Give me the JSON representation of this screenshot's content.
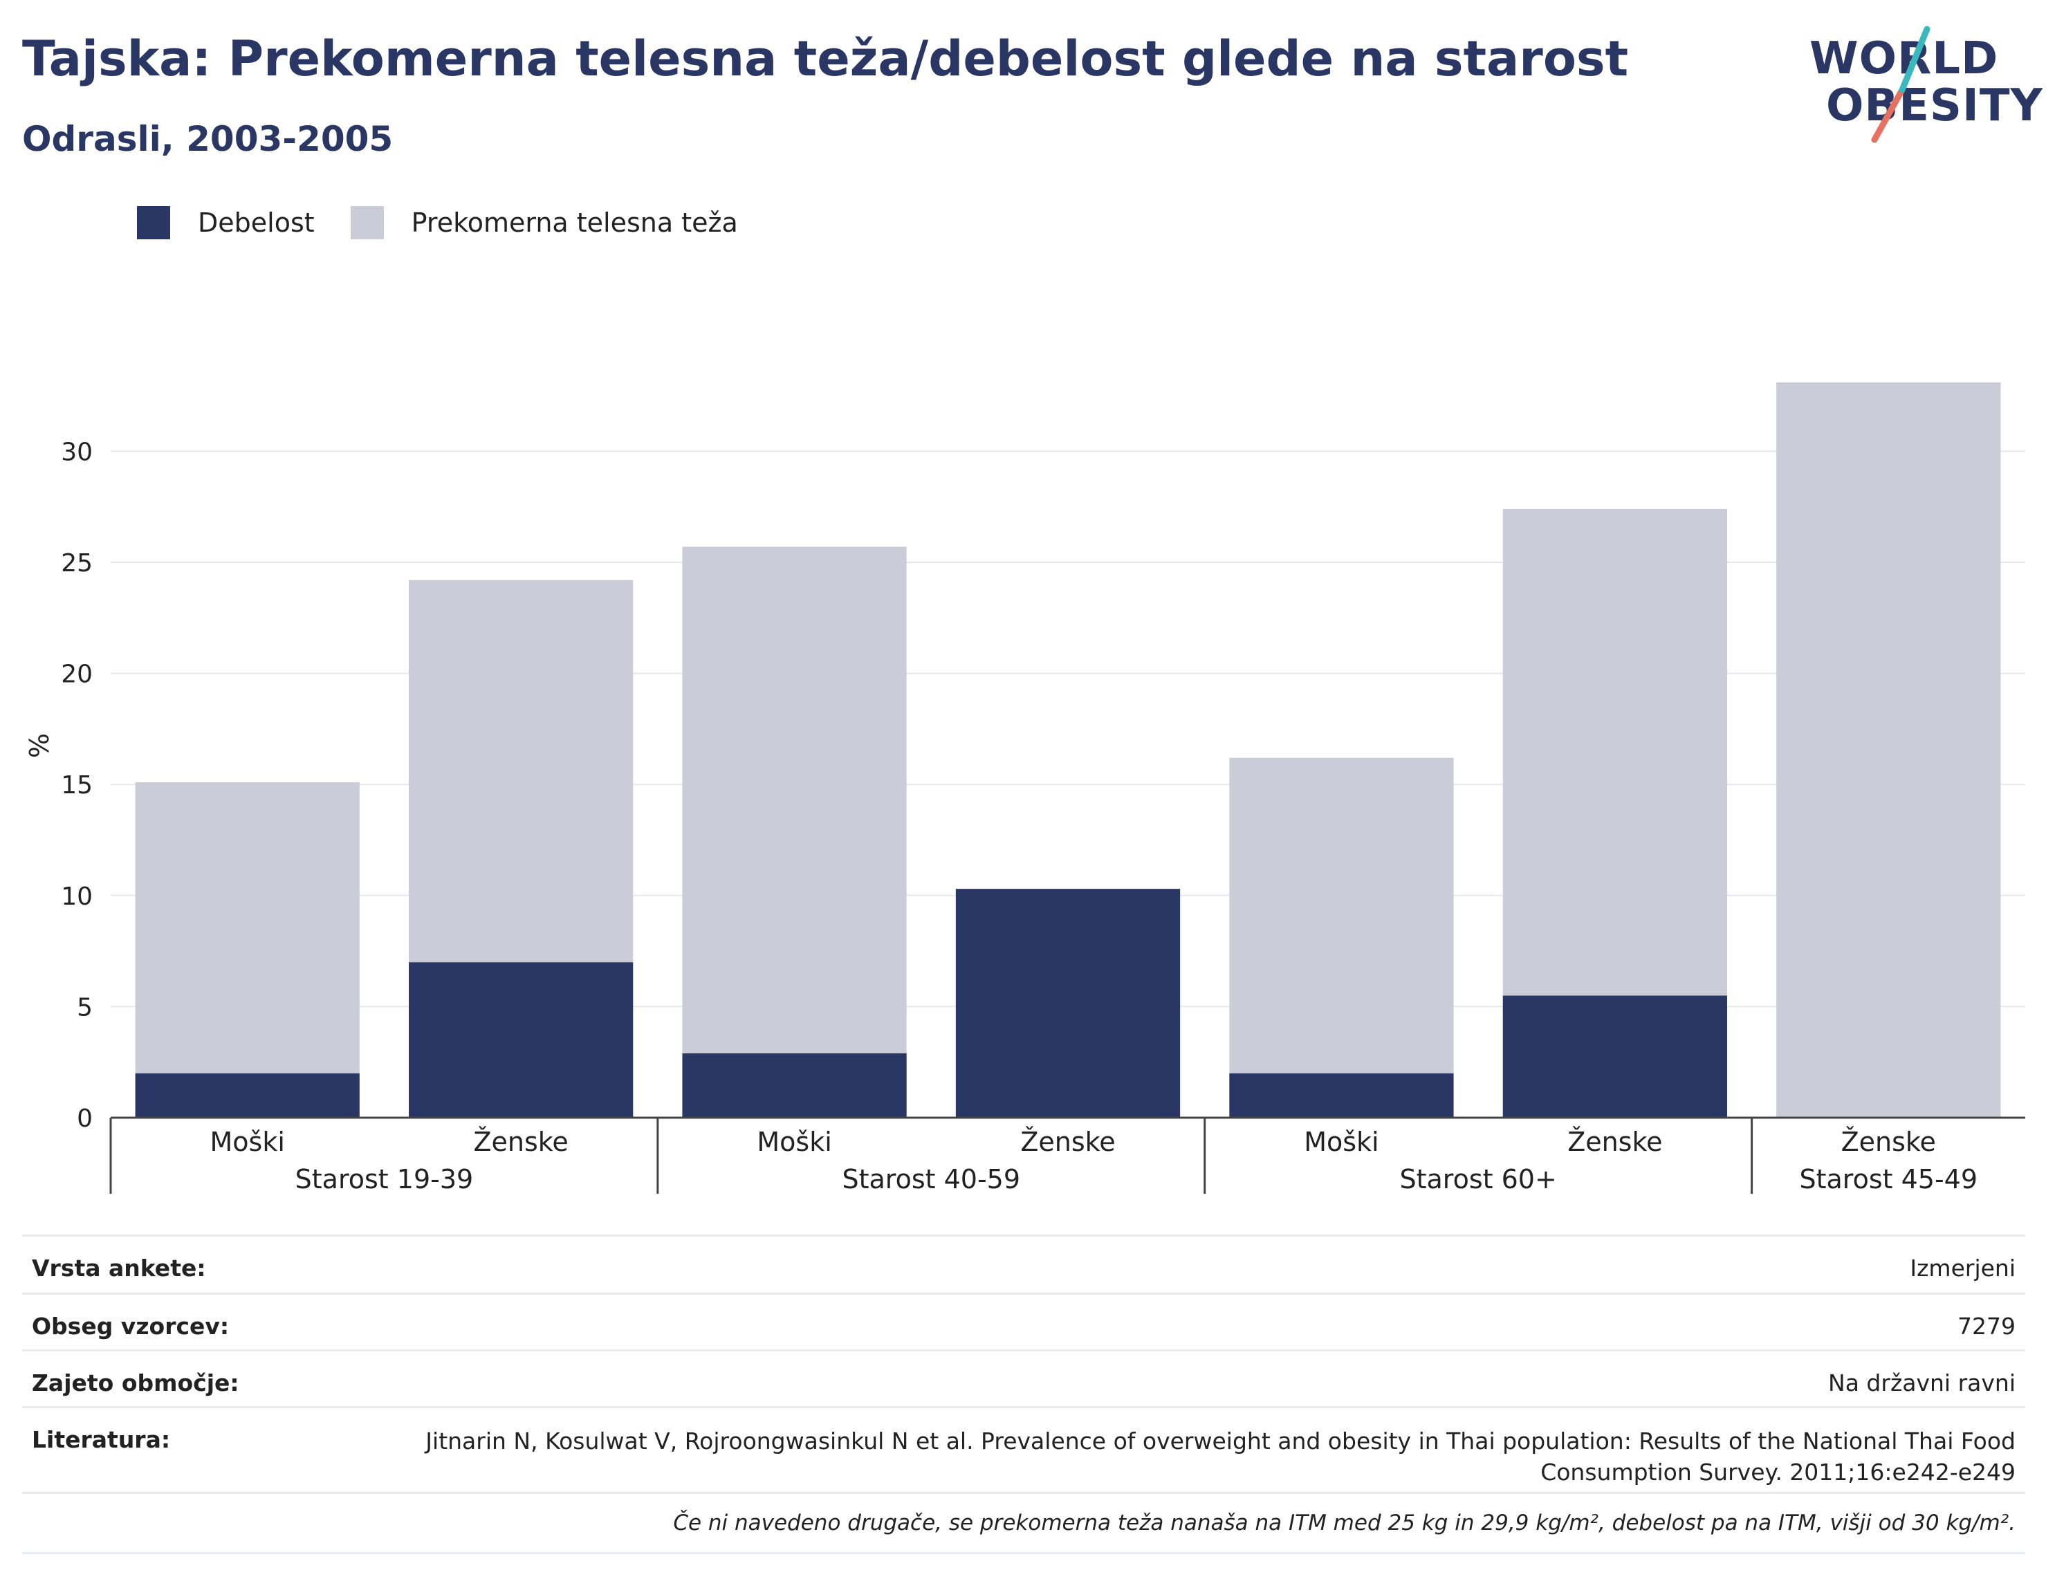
{
  "title": "Tajska: Prekomerna telesna teža/debelost glede na starost",
  "subtitle": "Odrasli, 2003-2005",
  "logo": {
    "line1": "WORLD",
    "line2": "OBESITY"
  },
  "legend": [
    {
      "label": "Debelost",
      "color": "#2a3765"
    },
    {
      "label": "Prekomerna telesna teža",
      "color": "#cbccd8"
    }
  ],
  "chart_data": {
    "type": "bar",
    "stacked": true,
    "ylabel": "%",
    "ylim": [
      0,
      33.5
    ],
    "yticks": [
      0,
      5,
      10,
      15,
      20,
      25,
      30
    ],
    "grid": true,
    "legend_position": "top-left",
    "categories": [
      "Moški",
      "Ženske",
      "Moški",
      "Ženske",
      "Moški",
      "Ženske",
      "Ženske"
    ],
    "groups": [
      {
        "label": "Starost 19-39",
        "count": 2
      },
      {
        "label": "Starost 40-59",
        "count": 2
      },
      {
        "label": "Starost 60+",
        "count": 2
      },
      {
        "label": "Starost 45-49",
        "count": 1
      }
    ],
    "series": [
      {
        "name": "Debelost",
        "color": "#2a3765",
        "values": [
          2.0,
          7.0,
          2.9,
          10.3,
          2.0,
          5.5,
          0
        ]
      },
      {
        "name": "Prekomerna telesna teža",
        "color": "#cbccd8",
        "values": [
          13.1,
          17.2,
          22.8,
          0,
          14.2,
          21.9,
          33.1
        ]
      }
    ]
  },
  "info": [
    {
      "key": "Vrsta ankete:",
      "value": "Izmerjeni"
    },
    {
      "key": "Obseg vzorcev:",
      "value": "7279"
    },
    {
      "key": "Zajeto območje:",
      "value": "Na državni ravni"
    },
    {
      "key": "Literatura:",
      "value": "Jitnarin N, Kosulwat V, Rojroongwasinkul N et al. Prevalence of overweight and obesity in Thai population: Results of the National Thai Food Consumption Survey. 2011;16:e242-e249"
    }
  ],
  "note": "Če ni navedeno drugače, se prekomerna teža nanaša na ITM med 25 kg in 29,9 kg/m², debelost pa na ITM, višji od 30 kg/m²."
}
